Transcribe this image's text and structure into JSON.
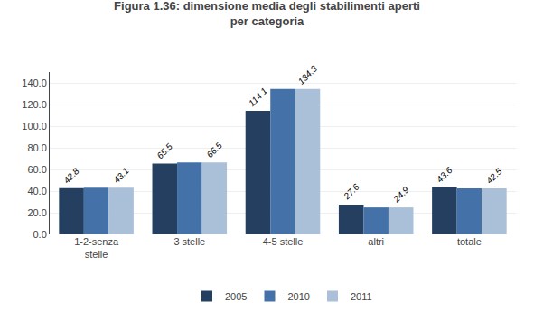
{
  "chart_data": {
    "type": "bar",
    "title": "Figura 1.36: dimensione media degli stabilimenti aperti\nper categoria",
    "categories": [
      "1-2-senza\nstelle",
      "3 stelle",
      "4-5 stelle",
      "altri",
      "totale"
    ],
    "series": [
      {
        "name": "2005",
        "color": "#243f60",
        "values": [
          42.8,
          65.5,
          114.1,
          27.6,
          43.6
        ],
        "data_labels": true
      },
      {
        "name": "2010",
        "color": "#4472a8",
        "values": [
          43.1,
          66.5,
          134.3,
          24.9,
          42.5
        ],
        "data_labels": false
      },
      {
        "name": "2011",
        "color": "#aabfd8",
        "values": [
          43.1,
          66.5,
          134.3,
          24.9,
          42.5
        ],
        "data_labels": true
      }
    ],
    "ylim": [
      0,
      150
    ],
    "yticks": [
      {
        "value": 0,
        "label": "0.0"
      },
      {
        "value": 20,
        "label": "20.0"
      },
      {
        "value": 40,
        "label": "40.0"
      },
      {
        "value": 60,
        "label": "60.0"
      },
      {
        "value": 80,
        "label": "80.0"
      },
      {
        "value": 100,
        "label": "100.0"
      },
      {
        "value": 120,
        "label": "120.0"
      },
      {
        "value": 140,
        "label": "140.0"
      }
    ],
    "grid": true,
    "legend": "bottom"
  }
}
